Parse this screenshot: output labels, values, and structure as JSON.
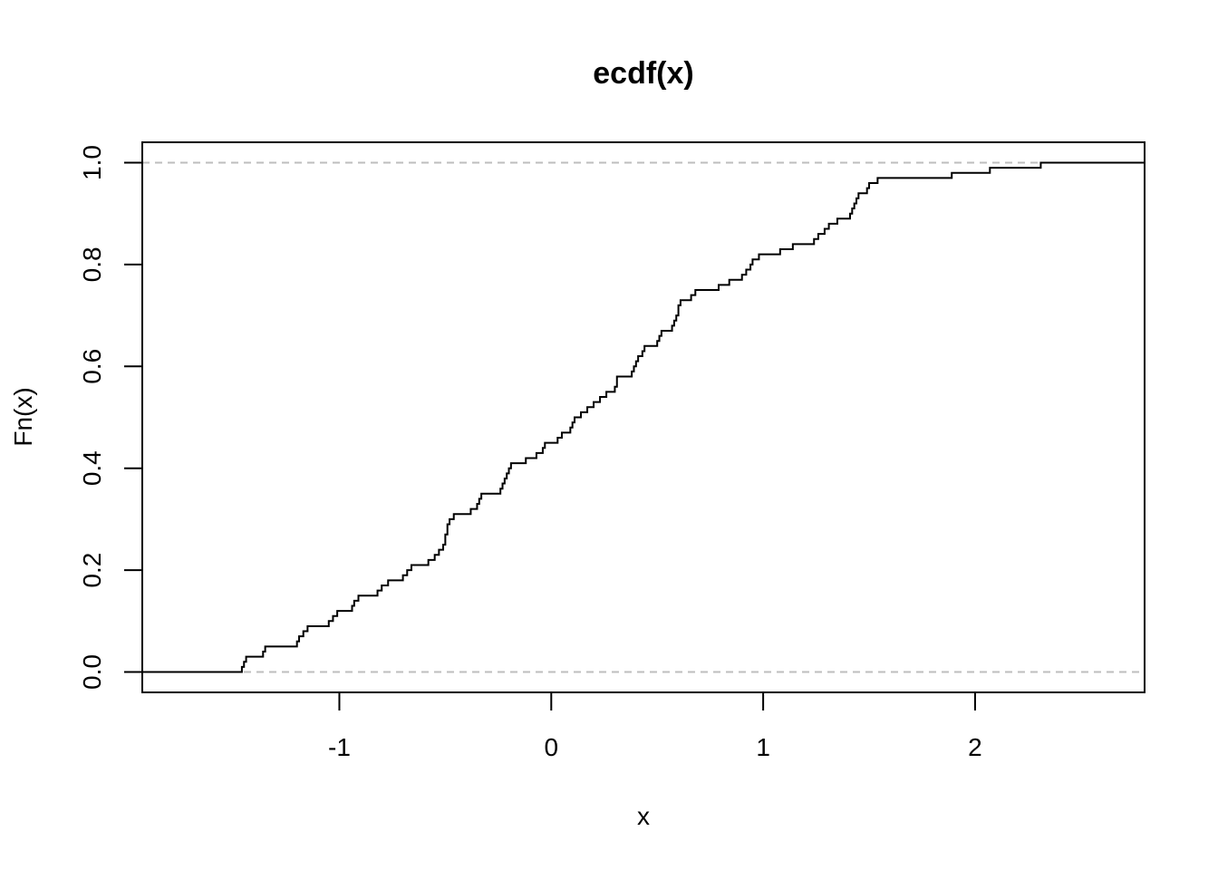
{
  "chart_data": {
    "type": "line",
    "title": "ecdf(x)",
    "xlabel": "x",
    "ylabel": "Fn(x)",
    "xlim": [
      -1.93,
      2.8
    ],
    "ylim": [
      -0.04,
      1.04
    ],
    "x_ticks": [
      -1,
      0,
      1,
      2
    ],
    "y_ticks": [
      0.0,
      0.2,
      0.4,
      0.6,
      0.8,
      1.0
    ],
    "x_tick_labels": [
      "-1",
      "0",
      "1",
      "2"
    ],
    "y_tick_labels": [
      "0.0",
      "0.2",
      "0.4",
      "0.6",
      "0.8",
      "1.0"
    ],
    "reference_lines": [
      0,
      1
    ],
    "grid": false,
    "colors": {
      "step": "#000000",
      "reference": "#bebebe"
    },
    "series": [
      {
        "steps": [
          [
            -1.46,
            0.01
          ],
          [
            -1.45,
            0.02
          ],
          [
            -1.44,
            0.03
          ],
          [
            -1.36,
            0.04
          ],
          [
            -1.35,
            0.05
          ],
          [
            -1.2,
            0.06
          ],
          [
            -1.19,
            0.07
          ],
          [
            -1.17,
            0.08
          ],
          [
            -1.15,
            0.09
          ],
          [
            -1.05,
            0.1
          ],
          [
            -1.03,
            0.11
          ],
          [
            -1.01,
            0.12
          ],
          [
            -0.94,
            0.13
          ],
          [
            -0.93,
            0.14
          ],
          [
            -0.91,
            0.15
          ],
          [
            -0.82,
            0.16
          ],
          [
            -0.8,
            0.17
          ],
          [
            -0.77,
            0.18
          ],
          [
            -0.7,
            0.19
          ],
          [
            -0.68,
            0.2
          ],
          [
            -0.66,
            0.21
          ],
          [
            -0.58,
            0.22
          ],
          [
            -0.55,
            0.23
          ],
          [
            -0.53,
            0.24
          ],
          [
            -0.51,
            0.25
          ],
          [
            -0.5,
            0.26
          ],
          [
            -0.5,
            0.27
          ],
          [
            -0.49,
            0.28
          ],
          [
            -0.49,
            0.29
          ],
          [
            -0.48,
            0.3
          ],
          [
            -0.46,
            0.31
          ],
          [
            -0.38,
            0.32
          ],
          [
            -0.35,
            0.33
          ],
          [
            -0.34,
            0.34
          ],
          [
            -0.33,
            0.35
          ],
          [
            -0.24,
            0.36
          ],
          [
            -0.23,
            0.37
          ],
          [
            -0.22,
            0.38
          ],
          [
            -0.21,
            0.39
          ],
          [
            -0.2,
            0.4
          ],
          [
            -0.19,
            0.41
          ],
          [
            -0.12,
            0.42
          ],
          [
            -0.07,
            0.43
          ],
          [
            -0.04,
            0.44
          ],
          [
            -0.03,
            0.45
          ],
          [
            0.03,
            0.46
          ],
          [
            0.05,
            0.47
          ],
          [
            0.09,
            0.48
          ],
          [
            0.1,
            0.49
          ],
          [
            0.11,
            0.5
          ],
          [
            0.14,
            0.51
          ],
          [
            0.17,
            0.52
          ],
          [
            0.2,
            0.53
          ],
          [
            0.23,
            0.54
          ],
          [
            0.26,
            0.55
          ],
          [
            0.3,
            0.56
          ],
          [
            0.31,
            0.57
          ],
          [
            0.31,
            0.58
          ],
          [
            0.38,
            0.59
          ],
          [
            0.39,
            0.6
          ],
          [
            0.4,
            0.61
          ],
          [
            0.41,
            0.62
          ],
          [
            0.43,
            0.63
          ],
          [
            0.44,
            0.64
          ],
          [
            0.5,
            0.65
          ],
          [
            0.51,
            0.66
          ],
          [
            0.52,
            0.67
          ],
          [
            0.57,
            0.68
          ],
          [
            0.58,
            0.69
          ],
          [
            0.59,
            0.7
          ],
          [
            0.6,
            0.71
          ],
          [
            0.6,
            0.72
          ],
          [
            0.61,
            0.73
          ],
          [
            0.66,
            0.74
          ],
          [
            0.68,
            0.75
          ],
          [
            0.79,
            0.76
          ],
          [
            0.84,
            0.77
          ],
          [
            0.9,
            0.78
          ],
          [
            0.92,
            0.79
          ],
          [
            0.94,
            0.8
          ],
          [
            0.95,
            0.81
          ],
          [
            0.98,
            0.82
          ],
          [
            1.08,
            0.83
          ],
          [
            1.14,
            0.84
          ],
          [
            1.24,
            0.85
          ],
          [
            1.26,
            0.86
          ],
          [
            1.29,
            0.87
          ],
          [
            1.31,
            0.88
          ],
          [
            1.35,
            0.89
          ],
          [
            1.41,
            0.9
          ],
          [
            1.42,
            0.91
          ],
          [
            1.43,
            0.92
          ],
          [
            1.44,
            0.93
          ],
          [
            1.45,
            0.94
          ],
          [
            1.49,
            0.95
          ],
          [
            1.5,
            0.96
          ],
          [
            1.54,
            0.97
          ],
          [
            1.89,
            0.98
          ],
          [
            2.07,
            0.99
          ],
          [
            2.31,
            1.0
          ]
        ]
      }
    ]
  }
}
